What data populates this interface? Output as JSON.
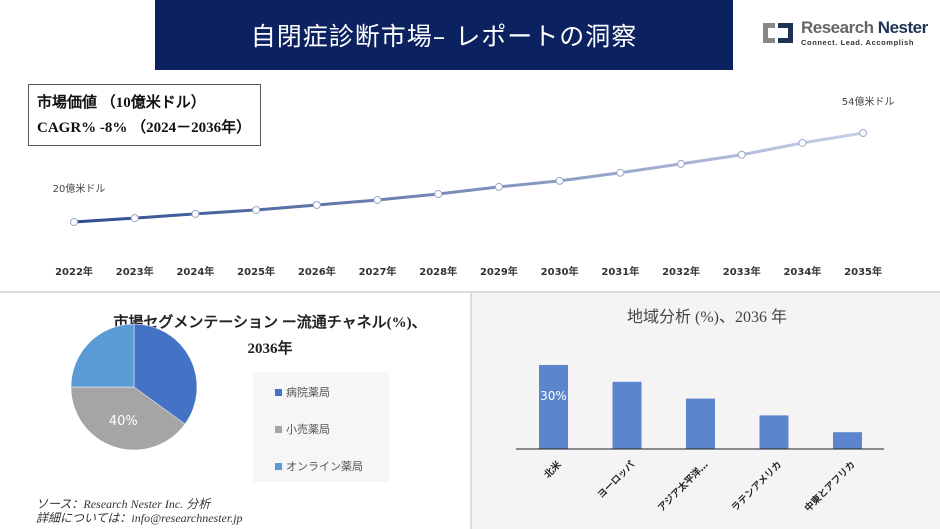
{
  "header": {
    "title": "自閉症診断市場– レポートの洞察",
    "logo_name_1": "Research",
    "logo_name_2": "Nester",
    "logo_tagline": "Connect. Lead. Accomplish"
  },
  "kpi": {
    "line1": "市場価値 （10億米ドル）",
    "line2": "CAGR% -8% （2024－2036年）"
  },
  "colors": {
    "banner": "#0b2160",
    "line_start": "#2e4d8f",
    "line_end": "#c8d0e6",
    "pie": [
      "#4472c4",
      "#a5a5a5",
      "#5b9bd5"
    ],
    "bar": "#5b85cc"
  },
  "chart_data": [
    {
      "type": "line",
      "x": [
        "2022年",
        "2023年",
        "2024年",
        "2025年",
        "2026年",
        "2027年",
        "2028年",
        "2029年",
        "2030年",
        "2031年",
        "2032年",
        "2033年",
        "2034年",
        "2035年"
      ],
      "values": [
        20,
        21.5,
        23.1,
        24.6,
        26.5,
        28.4,
        30.7,
        33.4,
        35.7,
        38.8,
        42.2,
        45.7,
        50.2,
        54
      ],
      "annotations": [
        {
          "label": "20億米ドル",
          "index": 0
        },
        {
          "label": "54億米ドル",
          "index": 13
        }
      ],
      "grid": false
    },
    {
      "type": "pie",
      "title": "市場セグメンテーション ー流通チャネル(%)、",
      "subtitle": "2036年",
      "labels": [
        "病院薬局",
        "小売薬局",
        "オンライン薬局"
      ],
      "values": [
        35,
        40,
        25
      ],
      "data_labels": [
        "",
        "40%",
        ""
      ],
      "legend": "right"
    },
    {
      "type": "bar",
      "title": "地域分析 (%)、2036 年",
      "categories": [
        "北米",
        "ヨーロッパ",
        "アジア太平洋…",
        "ラテンアメリカ",
        "中東とアフリカ"
      ],
      "values": [
        30,
        24,
        18,
        12,
        6
      ],
      "data_labels": [
        "30%",
        "",
        "",
        "",
        ""
      ]
    }
  ],
  "source": {
    "line1": "ソース：Research Nester Inc. 分析",
    "line2": "詳細については：info@researchnester.jp"
  }
}
